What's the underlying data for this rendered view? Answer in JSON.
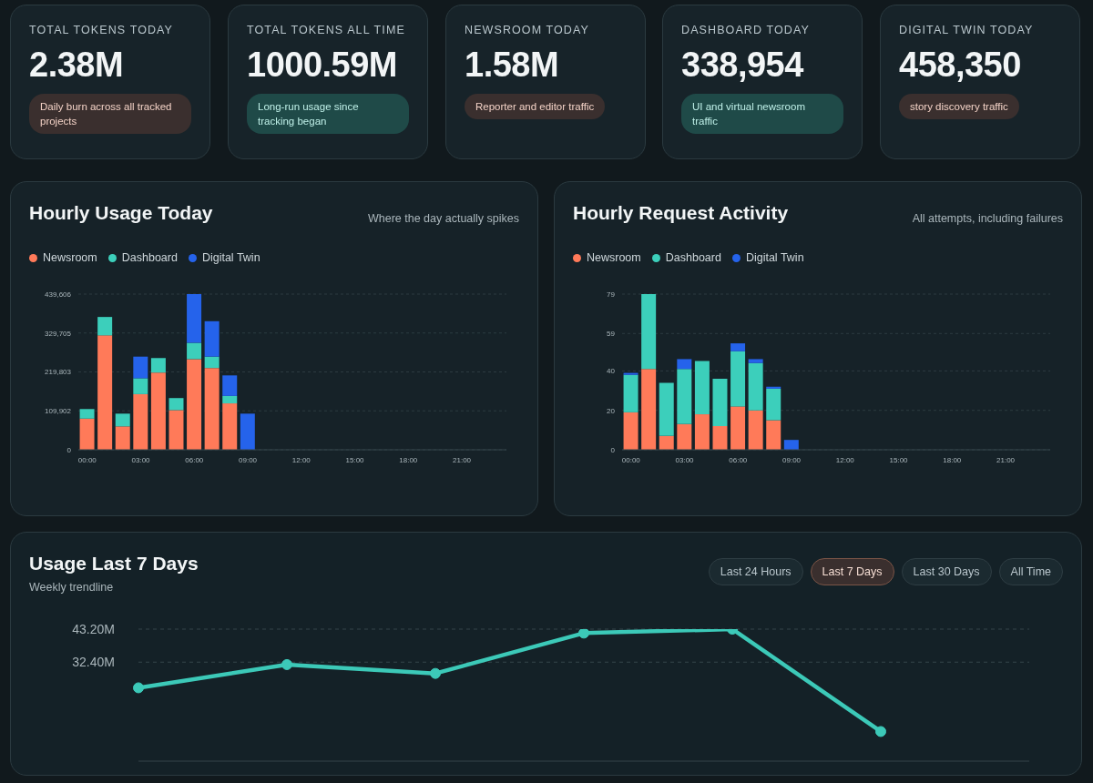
{
  "chart_data": [
    {
      "type": "other",
      "title": "TOTAL TOKENS TODAY",
      "annotations": [
        "2.38M",
        "Daily burn across all tracked projects"
      ]
    },
    {
      "type": "other",
      "title": "TOTAL TOKENS ALL TIME",
      "annotations": [
        "1000.59M",
        "Long-run usage since tracking began"
      ]
    },
    {
      "type": "other",
      "title": "NEWSROOM TODAY",
      "annotations": [
        "1.58M",
        "Reporter and editor traffic"
      ]
    },
    {
      "type": "other",
      "title": "DASHBOARD TODAY",
      "annotations": [
        "338,954",
        "UI and virtual newsroom traffic"
      ]
    },
    {
      "type": "other",
      "title": "DIGITAL TWIN TODAY",
      "annotations": [
        "458,350",
        "story discovery traffic"
      ]
    },
    {
      "type": "bar",
      "title": "Hourly Usage Today",
      "subtitle": "Where the day actually spikes",
      "stacked": true,
      "legend": "top left",
      "grid": "y",
      "categories": [
        "00:00",
        null,
        null,
        "03:00",
        null,
        null,
        "06:00",
        null,
        null,
        "09:00",
        null,
        null,
        "12:00",
        null,
        null,
        "15:00",
        null,
        null,
        "18:00",
        null,
        null,
        "21:00",
        null,
        null
      ],
      "ylim": [
        0,
        439606
      ],
      "yticks": [
        0,
        {
          "value": 109902,
          "label": "109,902"
        },
        {
          "value": 219803,
          "label": "219,803"
        },
        {
          "value": 329705,
          "label": "329,705"
        },
        {
          "value": 439606,
          "label": "439,606"
        }
      ],
      "series": [
        {
          "name": "Newsroom",
          "color": "#ff7a59",
          "values": [
            88000,
            323000,
            66000,
            157000,
            218000,
            112000,
            256000,
            231000,
            131000,
            0,
            0,
            0,
            0,
            0,
            0,
            0,
            0,
            0,
            0,
            0,
            0,
            0,
            0,
            0
          ]
        },
        {
          "name": "Dashboard",
          "color": "#3ccfbb",
          "values": [
            27000,
            52000,
            36000,
            45000,
            41000,
            34000,
            46000,
            32000,
            21000,
            0,
            0,
            0,
            0,
            0,
            0,
            0,
            0,
            0,
            0,
            0,
            0,
            0,
            0,
            0
          ]
        },
        {
          "name": "Digital Twin",
          "color": "#2563eb",
          "values": [
            0,
            0,
            0,
            61000,
            0,
            0,
            138000,
            100000,
            58000,
            102000,
            0,
            0,
            0,
            0,
            0,
            0,
            0,
            0,
            0,
            0,
            0,
            0,
            0,
            0
          ]
        }
      ]
    },
    {
      "type": "bar",
      "title": "Hourly Request Activity",
      "subtitle": "All attempts, including failures",
      "stacked": true,
      "legend": "top left",
      "grid": "y",
      "categories": [
        "00:00",
        null,
        null,
        "03:00",
        null,
        null,
        "06:00",
        null,
        null,
        "09:00",
        null,
        null,
        "12:00",
        null,
        null,
        "15:00",
        null,
        null,
        "18:00",
        null,
        null,
        "21:00",
        null,
        null
      ],
      "ylim": [
        0,
        79
      ],
      "yticks": [
        0,
        20,
        40,
        59,
        79
      ],
      "series": [
        {
          "name": "Newsroom",
          "color": "#ff7a59",
          "values": [
            19,
            41,
            7,
            13,
            18,
            12,
            22,
            20,
            15,
            0,
            0,
            0,
            0,
            0,
            0,
            0,
            0,
            0,
            0,
            0,
            0,
            0,
            0,
            0
          ]
        },
        {
          "name": "Dashboard",
          "color": "#3ccfbb",
          "values": [
            19,
            38,
            27,
            28,
            27,
            24,
            28,
            24,
            16,
            0,
            0,
            0,
            0,
            0,
            0,
            0,
            0,
            0,
            0,
            0,
            0,
            0,
            0,
            0
          ]
        },
        {
          "name": "Digital Twin",
          "color": "#2563eb",
          "values": [
            1,
            0,
            0,
            5,
            0,
            0,
            4,
            2,
            1,
            5,
            0,
            0,
            0,
            0,
            0,
            0,
            0,
            0,
            0,
            0,
            0,
            0,
            0,
            0
          ]
        }
      ]
    },
    {
      "type": "line",
      "title": "Usage Last 7 Days",
      "subtitle": "Weekly trendline",
      "annotations": [
        "Last 24 Hours",
        "Last 7 Days",
        "Last 30 Days",
        "All Time"
      ],
      "categories": [
        null,
        null,
        null,
        null,
        null,
        null,
        null
      ],
      "tick_labels": "y",
      "grid": "y",
      "marker": "circle",
      "line_style": "solid",
      "ylim": [
        0,
        43.2
      ],
      "yticks": [
        {
          "value": 32.4,
          "label": "32.40M"
        },
        {
          "value": 43.2,
          "label": "43.20M"
        }
      ],
      "series": [
        {
          "color": "#3cc9b8",
          "values": [
            24.0,
            31.6,
            28.7,
            41.9,
            43.2,
            9.7,
            null
          ]
        }
      ]
    }
  ]
}
